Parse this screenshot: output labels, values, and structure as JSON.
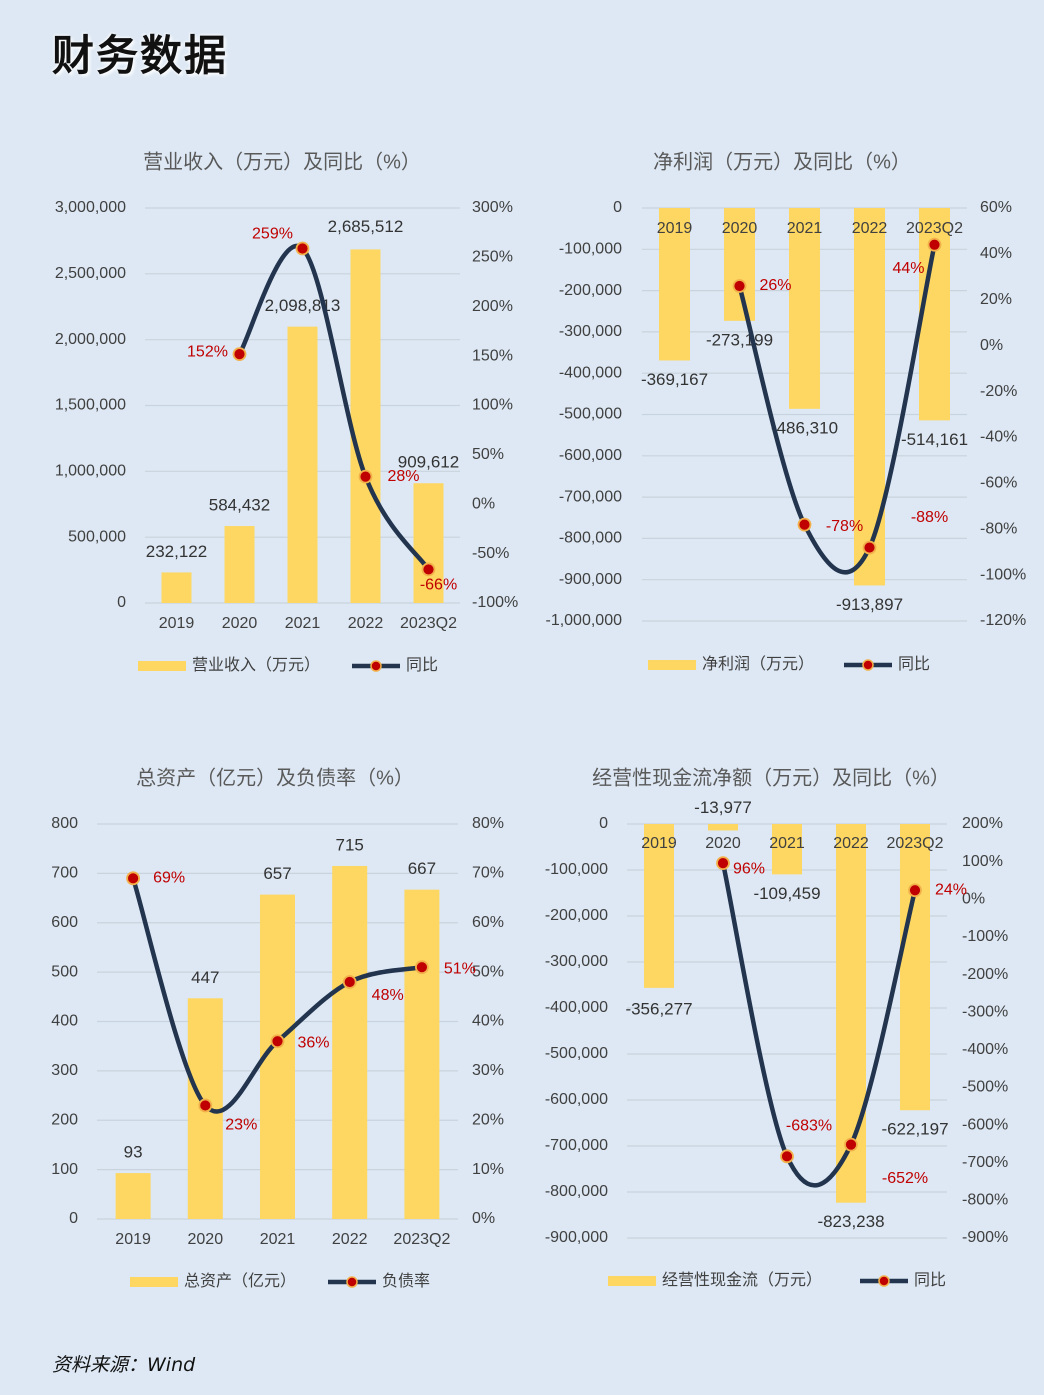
{
  "page": {
    "title": "财务数据",
    "source": "资料来源：Wind"
  },
  "colors": {
    "bar": "#fdd762",
    "line": "#22344e",
    "marker": "#c00000",
    "marker_ring": "#f2b04a",
    "pct_label": "#c00000",
    "value_label": "#333333",
    "axis_text": "#404040",
    "grid": "#c9d3dd"
  },
  "chart_data": [
    {
      "type": "bar+line",
      "title": "营业收入（万元）及同比（%）",
      "categories": [
        "2019",
        "2020",
        "2021",
        "2022",
        "2023Q2"
      ],
      "bar_series": {
        "name": "营业收入（万元）",
        "values": [
          232122,
          584432,
          2098813,
          2685512,
          909612
        ],
        "labels": [
          "232,122",
          "584,432",
          "2,098,813",
          "2,685,512",
          "909,612"
        ]
      },
      "line_series": {
        "name": "同比",
        "values": [
          null,
          152,
          259,
          28,
          -66
        ],
        "labels": [
          "",
          "152%",
          "259%",
          "28%",
          "-66%"
        ]
      },
      "y_left": {
        "min": 0,
        "max": 3000000,
        "ticks": [
          "0",
          "500,000",
          "1,000,000",
          "1,500,000",
          "2,000,000",
          "2,500,000",
          "3,000,000"
        ]
      },
      "y_right": {
        "min": -100,
        "max": 300,
        "ticks": [
          "-100%",
          "-50%",
          "0%",
          "50%",
          "100%",
          "150%",
          "200%",
          "250%",
          "300%"
        ]
      },
      "legend": "bottom"
    },
    {
      "type": "bar+line",
      "title": "净利润（万元）及同比（%）",
      "categories": [
        "2019",
        "2020",
        "2021",
        "2022",
        "2023Q2"
      ],
      "bar_series": {
        "name": "净利润（万元）",
        "values": [
          -369167,
          -273199,
          -486310,
          -913897,
          -514161
        ],
        "labels": [
          "-369,167",
          "-273,199",
          "-486,310",
          "-913,897",
          "-514,161"
        ]
      },
      "line_series": {
        "name": "同比",
        "values": [
          null,
          26,
          -78,
          -88,
          44
        ],
        "labels": [
          "",
          "26%",
          "-78%",
          "-88%",
          "44%"
        ]
      },
      "y_left": {
        "min": -1000000,
        "max": 0,
        "ticks": [
          "-1,000,000",
          "-900,000",
          "-800,000",
          "-700,000",
          "-600,000",
          "-500,000",
          "-400,000",
          "-300,000",
          "-200,000",
          "-100,000",
          "0"
        ]
      },
      "y_right": {
        "min": -120,
        "max": 60,
        "ticks": [
          "-120%",
          "-100%",
          "-80%",
          "-60%",
          "-40%",
          "-20%",
          "0%",
          "20%",
          "40%",
          "60%"
        ]
      },
      "legend": "bottom"
    },
    {
      "type": "bar+line",
      "title": "总资产（亿元）及负债率（%）",
      "categories": [
        "2019",
        "2020",
        "2021",
        "2022",
        "2023Q2"
      ],
      "bar_series": {
        "name": "总资产（亿元）",
        "values": [
          93,
          447,
          657,
          715,
          667
        ],
        "labels": [
          "93",
          "447",
          "657",
          "715",
          "667"
        ]
      },
      "line_series": {
        "name": "负债率",
        "values": [
          69,
          23,
          36,
          48,
          51
        ],
        "labels": [
          "69%",
          "23%",
          "36%",
          "48%",
          "51%"
        ]
      },
      "y_left": {
        "min": 0,
        "max": 800,
        "ticks": [
          "0",
          "100",
          "200",
          "300",
          "400",
          "500",
          "600",
          "700",
          "800"
        ]
      },
      "y_right": {
        "min": 0,
        "max": 80,
        "ticks": [
          "0%",
          "10%",
          "20%",
          "30%",
          "40%",
          "50%",
          "60%",
          "70%",
          "80%"
        ]
      },
      "legend": "bottom"
    },
    {
      "type": "bar+line",
      "title": "经营性现金流净额（万元）及同比（%）",
      "categories": [
        "2019",
        "2020",
        "2021",
        "2022",
        "2023Q2"
      ],
      "bar_series": {
        "name": "经营性现金流（万元）",
        "values": [
          -356277,
          -13977,
          -109459,
          -823238,
          -622197
        ],
        "labels": [
          "-356,277",
          "-13,977",
          "-109,459",
          "-823,238",
          "-622,197"
        ]
      },
      "line_series": {
        "name": "同比",
        "values": [
          null,
          96,
          -683,
          -652,
          24
        ],
        "labels": [
          "",
          "96%",
          "-683%",
          "-652%",
          "24%"
        ]
      },
      "y_left": {
        "min": -900000,
        "max": 0,
        "ticks": [
          "-900,000",
          "-800,000",
          "-700,000",
          "-600,000",
          "-500,000",
          "-400,000",
          "-300,000",
          "-200,000",
          "-100,000",
          "0"
        ]
      },
      "y_right": {
        "min": -900,
        "max": 200,
        "ticks": [
          "-900%",
          "-800%",
          "-700%",
          "-600%",
          "-500%",
          "-400%",
          "-300%",
          "-200%",
          "-100%",
          "0%",
          "100%",
          "200%"
        ]
      },
      "legend": "bottom"
    }
  ]
}
